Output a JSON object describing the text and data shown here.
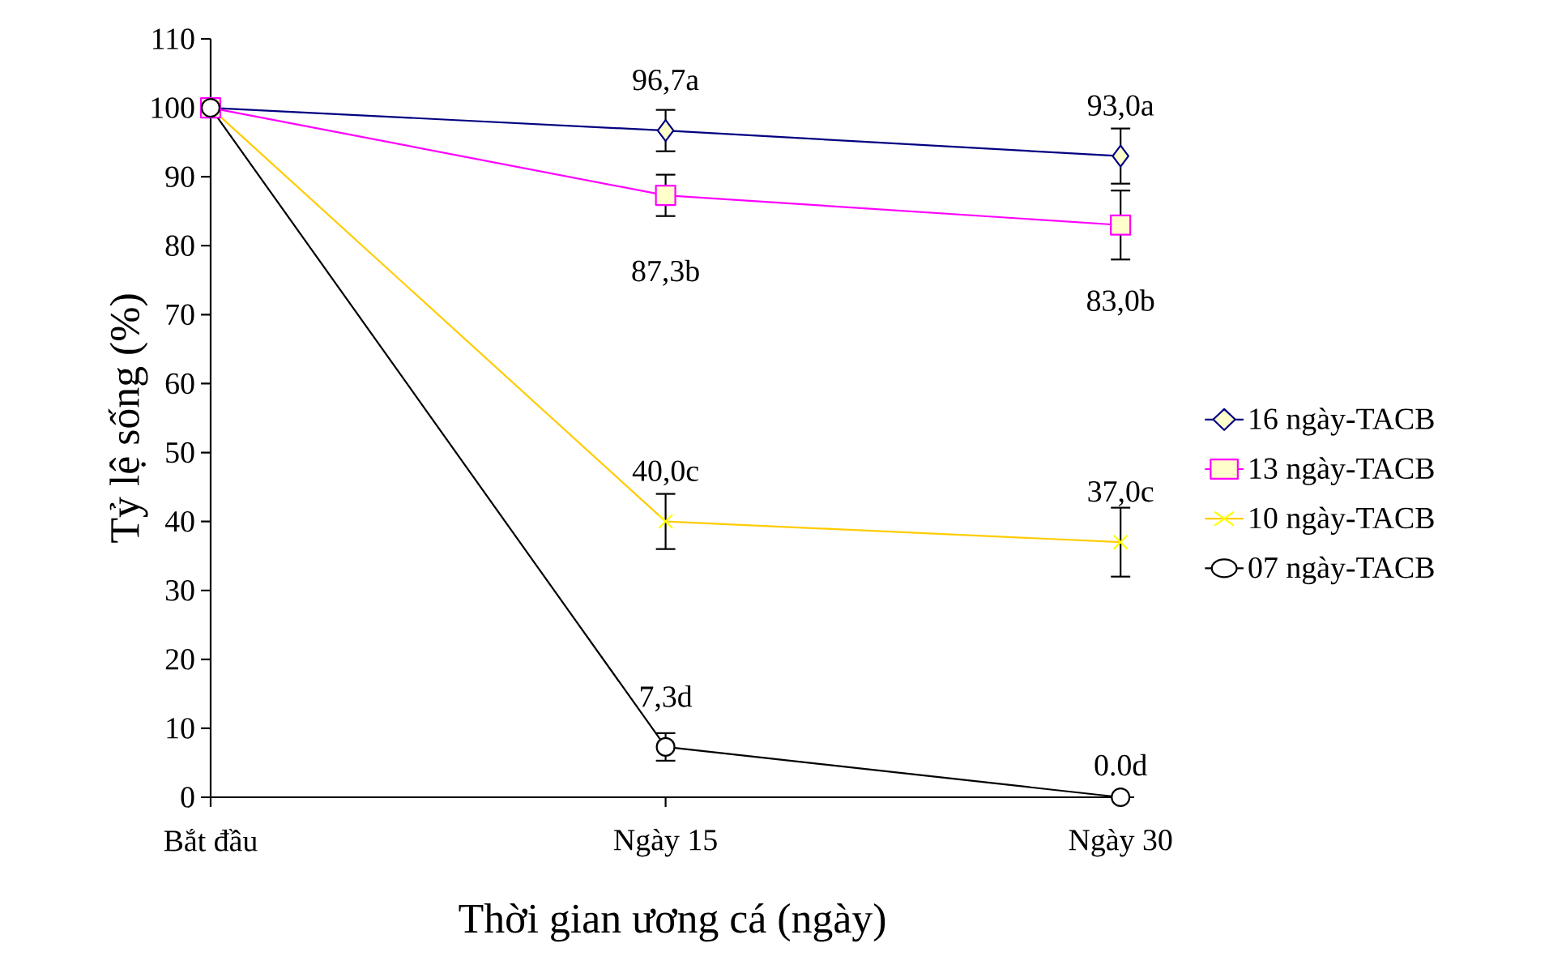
{
  "chart_data": {
    "type": "line",
    "xlabel": "Thời gian ương cá (ngày)",
    "ylabel": "Tỷ lệ sống (%)",
    "categories": [
      "Bắt đầu",
      "Ngày 15",
      "Ngày 30"
    ],
    "ylim": [
      0,
      110
    ],
    "yticks": [
      0,
      10,
      20,
      30,
      40,
      50,
      60,
      70,
      80,
      90,
      100,
      110
    ],
    "legend": "right",
    "grid": false,
    "series": [
      {
        "name": "16 ngày-TACB",
        "color": "#000080",
        "marker": "diamond",
        "values": [
          100,
          96.7,
          93.0
        ],
        "errors": [
          null,
          3,
          4
        ],
        "value_labels": [
          null,
          "96,7a",
          "93,0a"
        ]
      },
      {
        "name": "13 ngày-TACB",
        "color": "#ff00ff",
        "marker": "square",
        "values": [
          100,
          87.3,
          83.0
        ],
        "errors": [
          null,
          3,
          5
        ],
        "value_labels": [
          null,
          "87,3b",
          "83,0b"
        ]
      },
      {
        "name": "10 ngày-TACB",
        "color": "#ffcc00",
        "marker": "cross",
        "values": [
          100,
          40.0,
          37.0
        ],
        "errors": [
          null,
          4,
          5
        ],
        "value_labels": [
          null,
          "40,0c",
          "37,0c"
        ]
      },
      {
        "name": "07 ngày-TACB",
        "color": "#000000",
        "marker": "circle",
        "values": [
          100,
          7.3,
          0.0
        ],
        "errors": [
          null,
          2,
          null
        ],
        "value_labels": [
          null,
          "7,3d",
          "0.0d"
        ]
      }
    ]
  }
}
